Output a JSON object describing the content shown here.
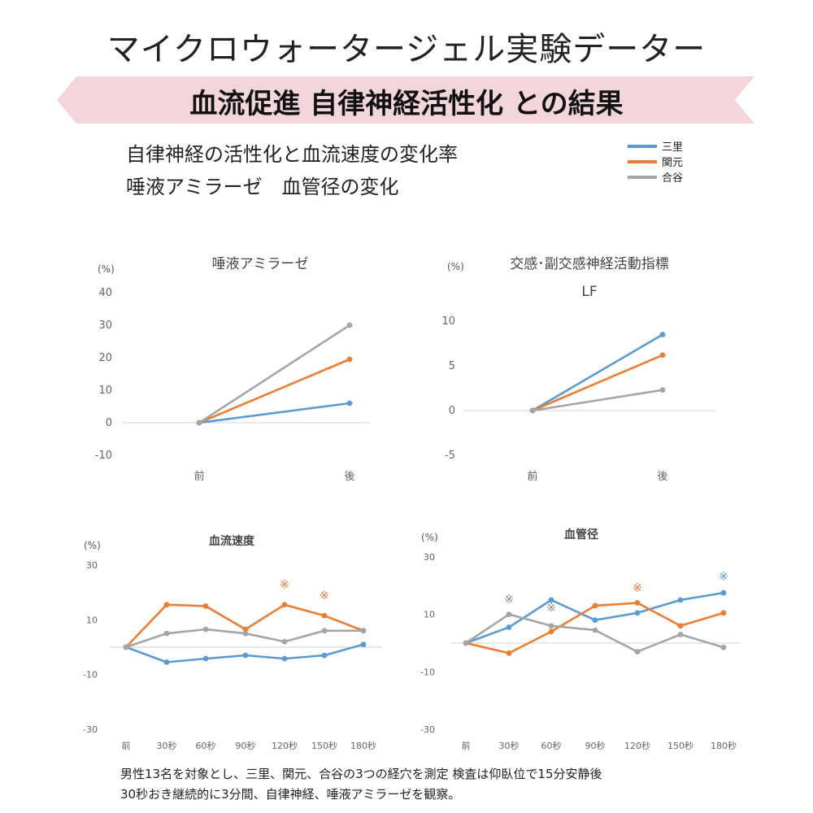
{
  "header": {
    "title": "マイクロウォータージェル実験データー",
    "banner": "血流促進 自律神経活性化 との結果",
    "subtitle1": "自律神経の活性化と血流速度の変化率",
    "subtitle2": "唾液アミラーゼ　血管径の変化"
  },
  "legend": {
    "items": [
      {
        "label": "三里",
        "color": "#5b9bd5"
      },
      {
        "label": "関元",
        "color": "#ed7d31"
      },
      {
        "label": "合谷",
        "color": "#a5a5a5"
      }
    ]
  },
  "chart_data": [
    {
      "type": "line",
      "title": "唾液アミラーゼ",
      "unit": "(%)",
      "categories": [
        "前",
        "後"
      ],
      "ylim": [
        -10,
        40
      ],
      "yticks": [
        40,
        30,
        20,
        10,
        0,
        -10
      ],
      "series": [
        {
          "color": "#5b9bd5",
          "values": [
            0,
            6
          ]
        },
        {
          "color": "#ed7d31",
          "values": [
            0,
            19.5
          ]
        },
        {
          "color": "#a5a5a5",
          "values": [
            0,
            30
          ]
        }
      ],
      "annotations": []
    },
    {
      "type": "line",
      "title": "交感･副交感神経活動指標",
      "title2": "LF",
      "unit": "(%)",
      "categories": [
        "前",
        "後"
      ],
      "ylim": [
        -5,
        10
      ],
      "yticks": [
        10,
        5,
        0,
        -5
      ],
      "series": [
        {
          "color": "#5b9bd5",
          "values": [
            0,
            8.5
          ]
        },
        {
          "color": "#ed7d31",
          "values": [
            0,
            6.2
          ]
        },
        {
          "color": "#a5a5a5",
          "values": [
            0,
            2.3
          ]
        }
      ],
      "annotations": []
    },
    {
      "type": "line",
      "title": "血流速度",
      "unit": "(%)",
      "categories": [
        "前",
        "30秒",
        "60秒",
        "90秒",
        "120秒",
        "150秒",
        "180秒"
      ],
      "ylim": [
        -30,
        30
      ],
      "yticks": [
        30,
        10,
        -10,
        -30
      ],
      "series": [
        {
          "color": "#5b9bd5",
          "values": [
            0,
            -5.5,
            -4.2,
            -3,
            -4.2,
            -3,
            1
          ]
        },
        {
          "color": "#ed7d31",
          "values": [
            0,
            15.5,
            15,
            6.5,
            15.5,
            11.5,
            6
          ]
        },
        {
          "color": "#a5a5a5",
          "values": [
            0,
            5,
            6.5,
            5,
            2,
            6,
            6
          ]
        }
      ],
      "annotations": [
        {
          "text": "※",
          "index": 4,
          "value": 21.5,
          "color": "#ed7d31"
        },
        {
          "text": "※",
          "index": 5,
          "value": 17.5,
          "color": "#ed7d31"
        }
      ]
    },
    {
      "type": "line",
      "title": "血管径",
      "unit": "(%)",
      "categories": [
        "前",
        "30秒",
        "60秒",
        "90秒",
        "120秒",
        "150秒",
        "180秒"
      ],
      "ylim": [
        -30,
        30
      ],
      "yticks": [
        30,
        10,
        -10,
        -30
      ],
      "series": [
        {
          "color": "#5b9bd5",
          "values": [
            0,
            5.5,
            15,
            8,
            10.5,
            15,
            17.5
          ]
        },
        {
          "color": "#ed7d31",
          "values": [
            0,
            -3.5,
            4,
            13,
            14,
            6,
            10.5
          ]
        },
        {
          "color": "#a5a5a5",
          "values": [
            0,
            10,
            6,
            4.5,
            -3,
            3,
            -1.5
          ]
        }
      ],
      "annotations": [
        {
          "text": "※",
          "index": 1,
          "value": 14,
          "color": "#888888"
        },
        {
          "text": "※",
          "index": 2,
          "value": 11,
          "color": "#888888"
        },
        {
          "text": "※",
          "index": 4,
          "value": 18,
          "color": "#ed7d31"
        },
        {
          "text": "※",
          "index": 6,
          "value": 22,
          "color": "#5b9bd5"
        }
      ]
    }
  ],
  "footnote": {
    "line1": "男性13名を対象とし、三里、関元、合谷の3つの経穴を測定 検査は仰臥位で15分安静後",
    "line2": "30秒おき継続的に3分間、自律神経、唾液アミラーゼを観察。"
  }
}
